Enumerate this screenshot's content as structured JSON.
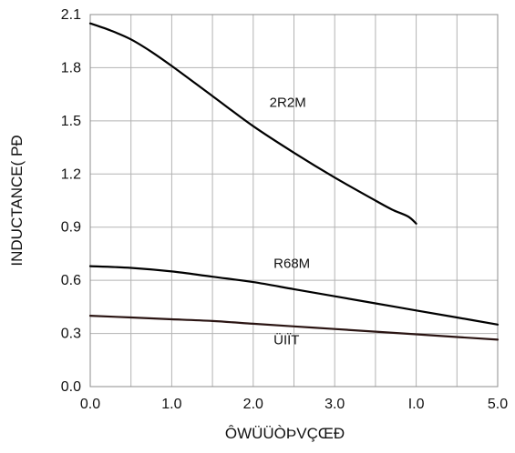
{
  "chart_data": {
    "type": "line",
    "xlabel": "ÔWÜÜÒÞVÇŒÐ",
    "ylabel": "INDUCTANCE( PÐ",
    "xlim": [
      0.0,
      5.0
    ],
    "ylim": [
      0.0,
      2.1
    ],
    "x_ticks": [
      {
        "value": 0.0,
        "label": "0.0"
      },
      {
        "value": 1.0,
        "label": "1.0"
      },
      {
        "value": 2.0,
        "label": "2.0"
      },
      {
        "value": 3.0,
        "label": "3.0"
      },
      {
        "value": 4.0,
        "label": "I.0"
      },
      {
        "value": 5.0,
        "label": "5.0"
      }
    ],
    "y_ticks": [
      {
        "value": 0.0,
        "label": "0.0"
      },
      {
        "value": 0.3,
        "label": "0.3"
      },
      {
        "value": 0.6,
        "label": "0.6"
      },
      {
        "value": 0.9,
        "label": "0.9"
      },
      {
        "value": 1.2,
        "label": "1.2"
      },
      {
        "value": 1.5,
        "label": "1.5"
      },
      {
        "value": 1.8,
        "label": "1.8"
      },
      {
        "value": 2.1,
        "label": "2.1"
      }
    ],
    "grid": true,
    "grid_minor_x_step": 0.5,
    "grid_y_step": 0.3,
    "series": [
      {
        "name": "2R2M",
        "color": "#000000",
        "label_at": [
          2.2,
          1.58
        ],
        "points": [
          [
            0.0,
            2.05
          ],
          [
            0.25,
            2.01
          ],
          [
            0.5,
            1.96
          ],
          [
            0.75,
            1.89
          ],
          [
            1.0,
            1.81
          ],
          [
            1.5,
            1.64
          ],
          [
            2.0,
            1.47
          ],
          [
            2.5,
            1.32
          ],
          [
            3.0,
            1.18
          ],
          [
            3.5,
            1.05
          ],
          [
            3.7,
            1.0
          ],
          [
            3.9,
            0.96
          ],
          [
            4.0,
            0.92
          ]
        ]
      },
      {
        "name": "R68M",
        "color": "#000000",
        "label_at": [
          2.25,
          0.67
        ],
        "points": [
          [
            0.0,
            0.68
          ],
          [
            0.5,
            0.67
          ],
          [
            1.0,
            0.65
          ],
          [
            1.5,
            0.62
          ],
          [
            2.0,
            0.59
          ],
          [
            2.5,
            0.55
          ],
          [
            3.0,
            0.51
          ],
          [
            3.5,
            0.47
          ],
          [
            4.0,
            0.43
          ],
          [
            4.5,
            0.39
          ],
          [
            5.0,
            0.35
          ]
        ]
      },
      {
        "name": "ÜIÏT",
        "color": "#2a1412",
        "label_at": [
          2.25,
          0.24
        ],
        "points": [
          [
            0.0,
            0.4
          ],
          [
            0.5,
            0.39
          ],
          [
            1.0,
            0.38
          ],
          [
            1.5,
            0.37
          ],
          [
            2.0,
            0.355
          ],
          [
            2.5,
            0.34
          ],
          [
            3.0,
            0.325
          ],
          [
            3.5,
            0.31
          ],
          [
            4.0,
            0.295
          ],
          [
            4.5,
            0.28
          ],
          [
            5.0,
            0.265
          ]
        ]
      }
    ]
  }
}
